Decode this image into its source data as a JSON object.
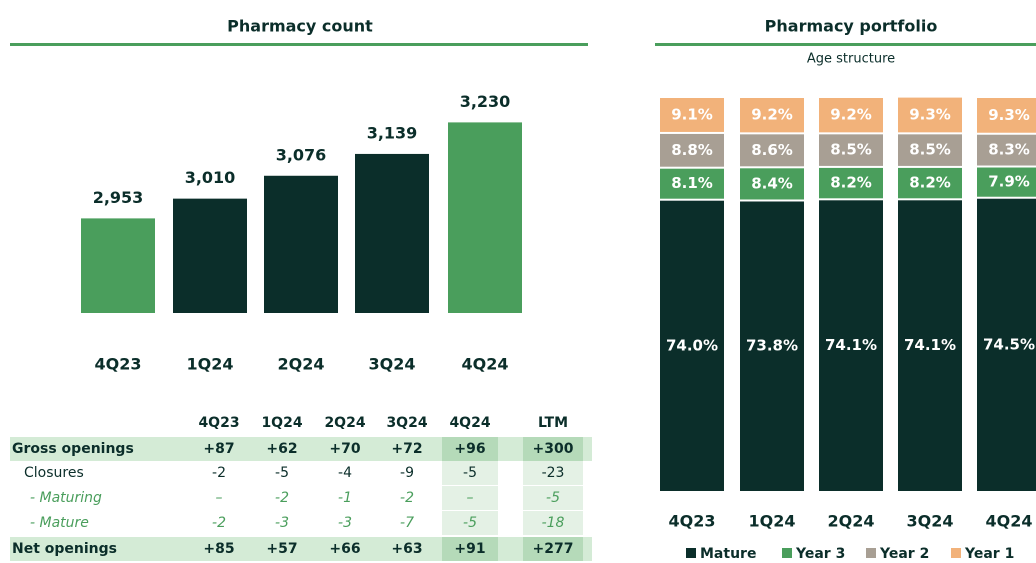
{
  "chart_data": [
    {
      "type": "bar",
      "title": "Pharmacy count",
      "categories": [
        "4Q23",
        "1Q24",
        "2Q24",
        "3Q24",
        "4Q24"
      ],
      "values": [
        2953,
        3010,
        3076,
        3139,
        3230
      ],
      "value_labels": [
        "2,953",
        "3,010",
        "3,076",
        "3,139",
        "3,230"
      ],
      "colors": [
        "#4a9e5c",
        "#0b2e2a",
        "#0b2e2a",
        "#0b2e2a",
        "#4a9e5c"
      ],
      "ylim": [
        2680,
        3260
      ]
    },
    {
      "type": "stacked_bar",
      "title": "Pharmacy portfolio",
      "subtitle": "Age structure",
      "categories": [
        "4Q23",
        "1Q24",
        "2Q24",
        "3Q24",
        "4Q24"
      ],
      "series": [
        {
          "name": "Mature",
          "color": "#0b2e2a",
          "values": [
            74.0,
            73.8,
            74.1,
            74.1,
            74.5
          ],
          "value_labels": [
            "74.0%",
            "73.8%",
            "74.1%",
            "74.1%",
            "74.5%"
          ]
        },
        {
          "name": "Year 3",
          "color": "#4a9e5c",
          "values": [
            8.1,
            8.4,
            8.2,
            8.2,
            7.9
          ],
          "value_labels": [
            "8.1%",
            "8.4%",
            "8.2%",
            "8.2%",
            "7.9%"
          ]
        },
        {
          "name": "Year 2",
          "color": "#a89f94",
          "values": [
            8.8,
            8.6,
            8.5,
            8.5,
            8.3
          ],
          "value_labels": [
            "8.8%",
            "8.6%",
            "8.5%",
            "8.5%",
            "8.3%"
          ]
        },
        {
          "name": "Year 1",
          "color": "#f2b27a",
          "values": [
            9.1,
            9.2,
            9.2,
            9.3,
            9.3
          ],
          "value_labels": [
            "9.1%",
            "9.2%",
            "9.2%",
            "9.3%",
            "9.3%"
          ]
        }
      ],
      "ylim": [
        0,
        100
      ]
    }
  ],
  "table": {
    "columns": [
      "4Q23",
      "1Q24",
      "2Q24",
      "3Q24",
      "4Q24",
      "LTM"
    ],
    "rows": [
      {
        "label": "Gross openings",
        "cells": [
          "+87",
          "+62",
          "+70",
          "+72",
          "+96",
          "+300"
        ]
      },
      {
        "label": "Closures",
        "cells": [
          "-2",
          "-5",
          "-4",
          "-9",
          "-5",
          "-23"
        ]
      },
      {
        "label": "- Maturing",
        "cells": [
          "–",
          "-2",
          "-1",
          "-2",
          "–",
          "-5"
        ]
      },
      {
        "label": "- Mature",
        "cells": [
          "-2",
          "-3",
          "-3",
          "-7",
          "-5",
          "-18"
        ]
      },
      {
        "label": "Net openings",
        "cells": [
          "+85",
          "+57",
          "+66",
          "+63",
          "+91",
          "+277"
        ]
      }
    ]
  }
}
